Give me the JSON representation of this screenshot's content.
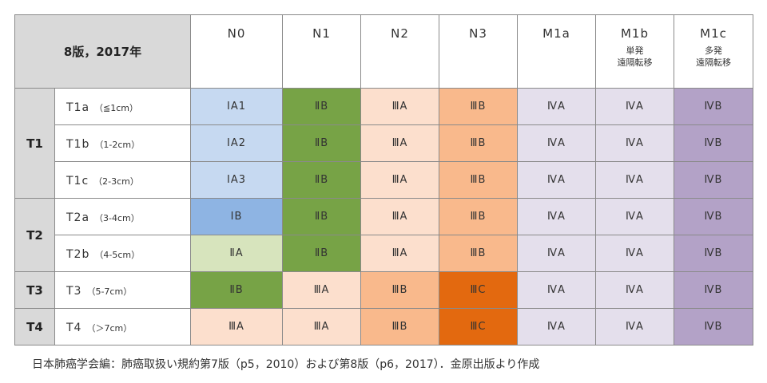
{
  "corner_label": "8版，2017年",
  "columns": [
    {
      "code": "N0",
      "sub": []
    },
    {
      "code": "N1",
      "sub": []
    },
    {
      "code": "N2",
      "sub": []
    },
    {
      "code": "N3",
      "sub": []
    },
    {
      "code": "M1a",
      "sub": []
    },
    {
      "code": "M1b",
      "sub": [
        "単発",
        "遠隔転移"
      ]
    },
    {
      "code": "M1c",
      "sub": [
        "多発",
        "遠隔転移"
      ]
    }
  ],
  "groups": [
    {
      "label": "T1",
      "rows": [
        {
          "code": "T1a",
          "size": "（≦1cm）",
          "stages": [
            "ⅠA1",
            "ⅡB",
            "ⅢA",
            "ⅢB",
            "ⅣA",
            "ⅣA",
            "ⅣB"
          ]
        },
        {
          "code": "T1b",
          "size": "（1-2cm）",
          "stages": [
            "ⅠA2",
            "ⅡB",
            "ⅢA",
            "ⅢB",
            "ⅣA",
            "ⅣA",
            "ⅣB"
          ]
        },
        {
          "code": "T1c",
          "size": "（2-3cm）",
          "stages": [
            "ⅠA3",
            "ⅡB",
            "ⅢA",
            "ⅢB",
            "ⅣA",
            "ⅣA",
            "ⅣB"
          ]
        }
      ]
    },
    {
      "label": "T2",
      "rows": [
        {
          "code": "T2a",
          "size": "（3-4cm）",
          "stages": [
            "ⅠB",
            "ⅡB",
            "ⅢA",
            "ⅢB",
            "ⅣA",
            "ⅣA",
            "ⅣB"
          ]
        },
        {
          "code": "T2b",
          "size": "（4-5cm）",
          "stages": [
            "ⅡA",
            "ⅡB",
            "ⅢA",
            "ⅢB",
            "ⅣA",
            "ⅣA",
            "ⅣB"
          ]
        }
      ]
    },
    {
      "label": "T3",
      "rows": [
        {
          "code": "T3",
          "size": "（5-7cm）",
          "stages": [
            "ⅡB",
            "ⅢA",
            "ⅢB",
            "ⅢC",
            "ⅣA",
            "ⅣA",
            "ⅣB"
          ]
        }
      ]
    },
    {
      "label": "T4",
      "rows": [
        {
          "code": "T4",
          "size": "（＞7cm）",
          "stages": [
            "ⅢA",
            "ⅢA",
            "ⅢB",
            "ⅢC",
            "ⅣA",
            "ⅣA",
            "ⅣB"
          ]
        }
      ]
    }
  ],
  "stage_colors": {
    "ⅠA1": "#c6d9f1",
    "ⅠA2": "#c6d9f1",
    "ⅠA3": "#c6d9f1",
    "ⅠB": "#8eb4e3",
    "ⅡA": "#d7e4bd",
    "ⅡB": "#77a346",
    "ⅢA": "#fcdfcd",
    "ⅢB": "#f9b98c",
    "ⅢC": "#e3690f",
    "ⅣA": "#e4dfec",
    "ⅣB": "#b3a2c7"
  },
  "caption": "日本肺癌学会編：肺癌取扱い規約第7版（p5，2010）および第8版（p6，2017）．金原出版より作成"
}
